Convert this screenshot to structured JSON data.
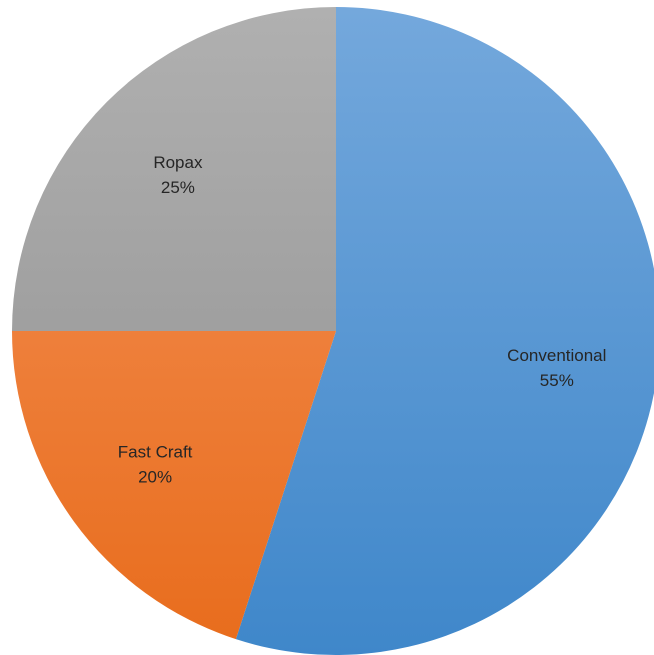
{
  "chart_data": {
    "type": "pie",
    "title": "",
    "slices": [
      {
        "label": "Conventional",
        "value": 55,
        "value_label": "55%",
        "color_light": "#74a8dc",
        "color_dark": "#3f87ca"
      },
      {
        "label": "Fast Craft",
        "value": 20,
        "value_label": "20%",
        "color_light": "#f4935a",
        "color_dark": "#e86c1c"
      },
      {
        "label": "Ropax",
        "value": 25,
        "value_label": "25%",
        "color_light": "#b0b0b0",
        "color_dark": "#8f8f8f"
      }
    ],
    "start_angle": "12 o'clock",
    "direction": "clockwise",
    "legend": "none",
    "data_labels": "inside"
  }
}
